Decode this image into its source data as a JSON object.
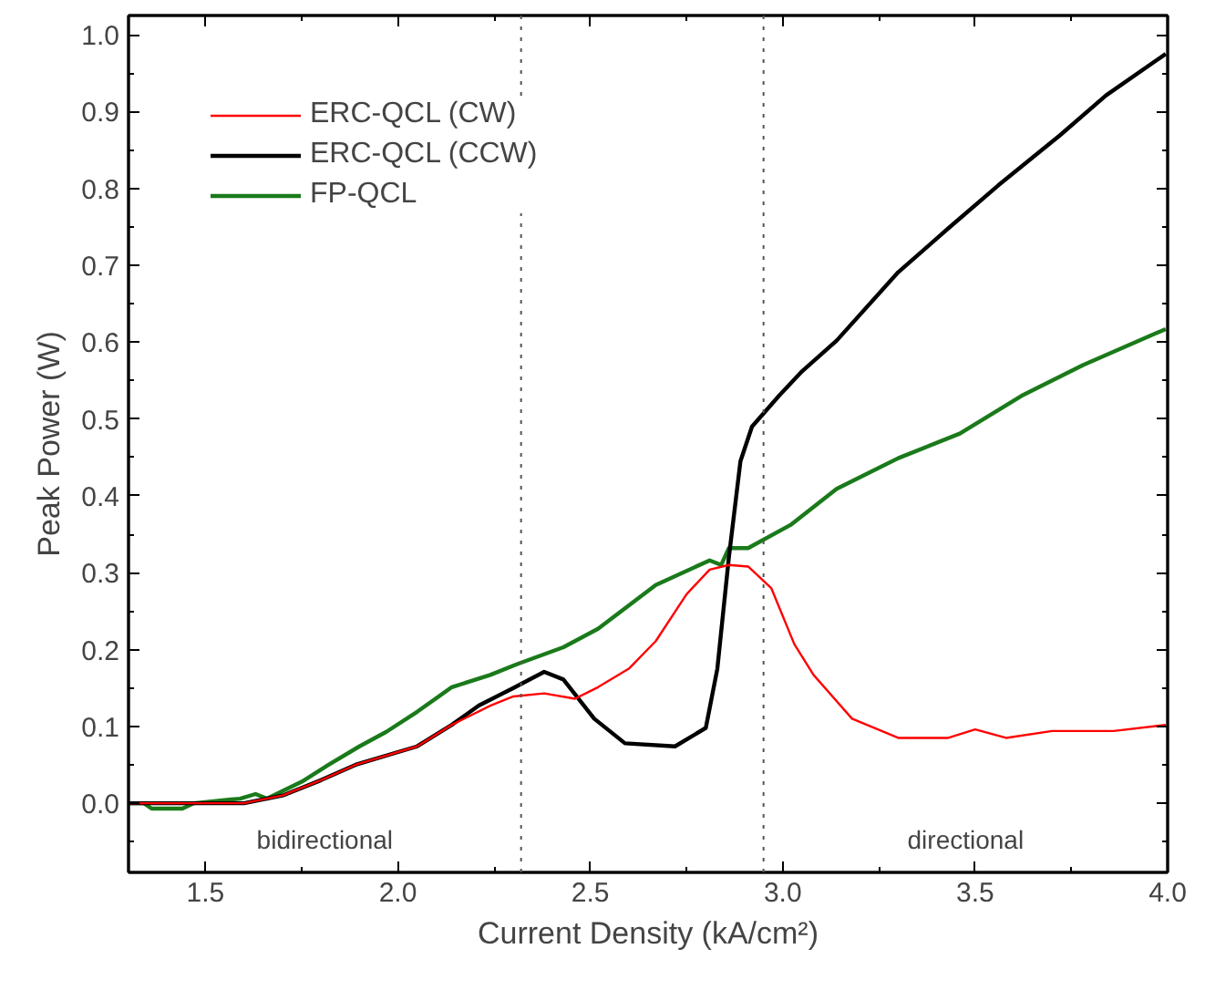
{
  "chart_data": {
    "type": "line",
    "xlabel": "Current Density (kA/cm²)",
    "ylabel": "Peak Power (W)",
    "xlim": [
      1.3,
      4.0
    ],
    "ylim": [
      -0.09,
      1.025
    ],
    "xticks": [
      {
        "value": 1.5,
        "label": "1.5"
      },
      {
        "value": 2.0,
        "label": "2.0"
      },
      {
        "value": 2.5,
        "label": "2.5"
      },
      {
        "value": 3.0,
        "label": "3.0"
      },
      {
        "value": 3.5,
        "label": "3.5"
      },
      {
        "value": 4.0,
        "label": "4.0"
      }
    ],
    "yticks": [
      {
        "value": 0,
        "label": "0.0"
      },
      {
        "value": 0.1,
        "label": "0.1"
      },
      {
        "value": 0.2,
        "label": "0.2"
      },
      {
        "value": 0.3,
        "label": "0.3"
      },
      {
        "value": 0.4,
        "label": "0.4"
      },
      {
        "value": 0.5,
        "label": "0.5"
      },
      {
        "value": 0.6,
        "label": "0.6"
      },
      {
        "value": 0.7,
        "label": "0.7"
      },
      {
        "value": 0.8,
        "label": "0.8"
      },
      {
        "value": 0.9,
        "label": "0.9"
      },
      {
        "value": 1.0,
        "label": "1.0"
      }
    ],
    "grid": false,
    "legend": "top left",
    "marker": "none",
    "line_style": "solid",
    "series": [
      {
        "name": "ERC-QCL (CW)",
        "color": "#ff0000",
        "x": [
          1.3,
          1.5,
          1.6,
          1.7,
          1.8,
          1.89,
          2.05,
          2.14,
          2.24,
          2.3,
          2.38,
          2.46,
          2.52,
          2.6,
          2.67,
          2.75,
          2.81,
          2.86,
          2.91,
          2.97,
          3.03,
          3.08,
          3.18,
          3.3,
          3.43,
          3.5,
          3.58,
          3.7,
          3.86,
          3.995
        ],
        "values": [
          0.0,
          0.0,
          0.0,
          0.01,
          0.03,
          0.05,
          0.074,
          0.102,
          0.127,
          0.139,
          0.143,
          0.136,
          0.151,
          0.175,
          0.211,
          0.272,
          0.304,
          0.31,
          0.308,
          0.28,
          0.207,
          0.167,
          0.11,
          0.085,
          0.085,
          0.096,
          0.085,
          0.094,
          0.094,
          0.102
        ]
      },
      {
        "name": "ERC-QCL (CCW)",
        "color": "#000000",
        "x": [
          1.3,
          1.5,
          1.6,
          1.7,
          1.8,
          1.89,
          2.05,
          2.14,
          2.21,
          2.3,
          2.38,
          2.43,
          2.51,
          2.59,
          2.72,
          2.8,
          2.83,
          2.86,
          2.89,
          2.92,
          2.99,
          3.05,
          3.14,
          3.3,
          3.43,
          3.56,
          3.72,
          3.84,
          3.995
        ],
        "values": [
          0.0,
          0.0,
          0.0,
          0.01,
          0.03,
          0.05,
          0.074,
          0.102,
          0.127,
          0.15,
          0.171,
          0.161,
          0.11,
          0.078,
          0.074,
          0.098,
          0.175,
          0.32,
          0.445,
          0.49,
          0.53,
          0.562,
          0.602,
          0.691,
          0.748,
          0.804,
          0.869,
          0.921,
          0.975
        ]
      },
      {
        "name": "FP-QCL",
        "color": "#1a7a1a",
        "x": [
          1.3,
          1.34,
          1.36,
          1.44,
          1.47,
          1.59,
          1.63,
          1.66,
          1.75,
          1.82,
          1.9,
          1.97,
          2.05,
          2.14,
          2.24,
          2.31,
          2.43,
          2.52,
          2.67,
          2.81,
          2.84,
          2.86,
          2.91,
          3.02,
          3.14,
          3.3,
          3.46,
          3.62,
          3.78,
          3.995
        ],
        "values": [
          0.0,
          0.0,
          -0.007,
          -0.007,
          0.0,
          0.006,
          0.012,
          0.006,
          0.028,
          0.05,
          0.074,
          0.093,
          0.119,
          0.151,
          0.167,
          0.181,
          0.203,
          0.227,
          0.284,
          0.316,
          0.31,
          0.332,
          0.332,
          0.362,
          0.409,
          0.449,
          0.481,
          0.53,
          0.57,
          0.617
        ]
      }
    ],
    "ref_lines": [
      {
        "axis": "x",
        "value": 2.32,
        "color": "#555555",
        "line_style": "dotted"
      },
      {
        "axis": "x",
        "value": 2.95,
        "color": "#555555",
        "line_style": "dotted"
      }
    ],
    "annotations": [
      "bidirectional",
      "directional"
    ]
  }
}
